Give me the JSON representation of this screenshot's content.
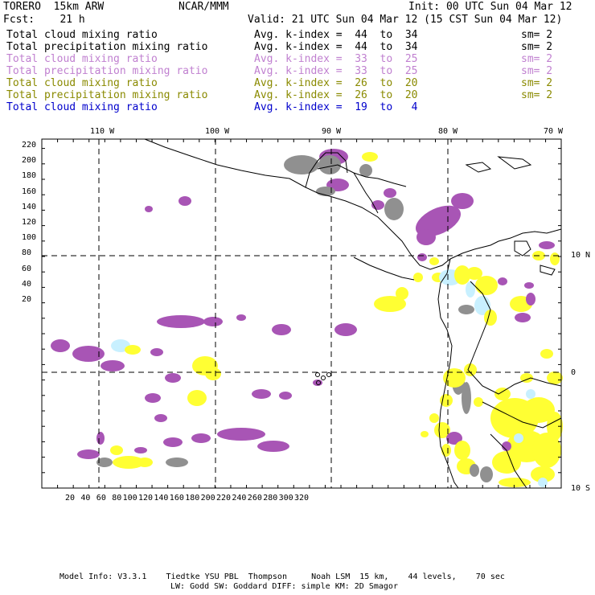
{
  "header": {
    "model": "TORERO  15km ARW",
    "org": "NCAR/MMM",
    "init": "Init: 00 UTC Sun 04 Mar 12",
    "fcst": "Fcst:    21 h",
    "valid": "Valid: 21 UTC Sun 04 Mar 12 (15 CST Sun 04 Mar 12)"
  },
  "legend": [
    {
      "field": "Total cloud mixing ratio",
      "index": "Avg. k-index =  44  to  34",
      "sm": "sm= 2",
      "color": "#000000"
    },
    {
      "field": "Total precipitation mixing ratio",
      "index": "Avg. k-index =  44  to  34",
      "sm": "sm= 2",
      "color": "#000000"
    },
    {
      "field": "Total cloud mixing ratio",
      "index": "Avg. k-index =  33  to  25",
      "sm": "sm= 2",
      "color": "#c080d0"
    },
    {
      "field": "Total precipitation mixing ratio",
      "index": "Avg. k-index =  33  to  25",
      "sm": "sm= 2",
      "color": "#c080d0"
    },
    {
      "field": "Total cloud mixing ratio",
      "index": "Avg. k-index =  26  to  20",
      "sm": "sm= 2",
      "color": "#8a8a00"
    },
    {
      "field": "Total precipitation mixing ratio",
      "index": "Avg. k-index =  26  to  20",
      "sm": "sm= 2",
      "color": "#8a8a00"
    },
    {
      "field": "Total cloud mixing ratio",
      "index": "Avg. k-index =  19  to   4",
      "sm": "",
      "color": "#0000cc"
    }
  ],
  "axes": {
    "top_lon": [
      "110 W",
      "100 W",
      "90 W",
      "80 W",
      "70 W"
    ],
    "right_lat": [
      "10 N",
      "0",
      "10 S"
    ],
    "left_grid": [
      "220",
      "200",
      "180",
      "160",
      "140",
      "120",
      "100",
      "80",
      "60",
      "40",
      "20"
    ],
    "bottom_grid": [
      "20",
      "40",
      "60",
      "80",
      "100",
      "120",
      "140",
      "160",
      "180",
      "200",
      "220",
      "240",
      "260",
      "280",
      "300",
      "320"
    ]
  },
  "colors": {
    "gray_cloud": "#909090",
    "purple": "#a855b5",
    "yellow": "#ffff33",
    "cyan": "#c8f0ff"
  },
  "footer": {
    "line1": "Model Info: V3.3.1    Tiedtke YSU PBL  Thompson     Noah LSM  15 km,    44 levels,    70 sec",
    "line2": "LW: Godd SW: Goddard DIFF: simple KM: 2D Smagor"
  }
}
